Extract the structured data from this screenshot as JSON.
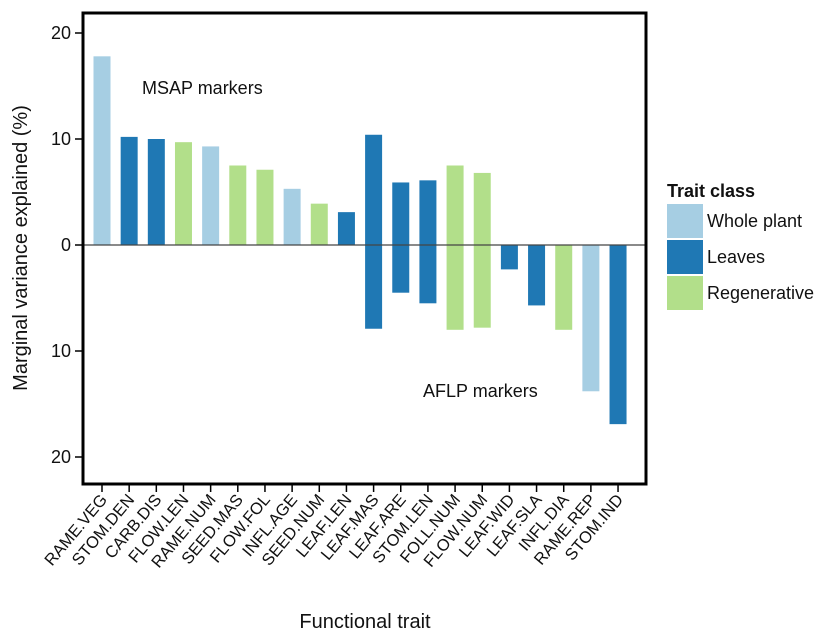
{
  "chart_data": {
    "type": "bar",
    "xlabel": "Functional trait",
    "ylabel": "Marginal variance explained  (%)",
    "ylim": [
      -20,
      20
    ],
    "y_ticks": [
      20,
      10,
      0,
      10,
      20
    ],
    "y_tick_values": [
      20,
      10,
      0,
      -10,
      -20
    ],
    "grid": false,
    "legend_position": "right",
    "legend_title": "Trait class",
    "classes": [
      {
        "name": "Whole plant",
        "color": "#a6cee3"
      },
      {
        "name": "Leaves",
        "color": "#1f78b4"
      },
      {
        "name": "Regenerative",
        "color": "#b2df8a"
      }
    ],
    "annotations": {
      "upper": "MSAP markers",
      "lower": "AFLP markers"
    },
    "categories": [
      "RAME.VEG",
      "STOM.DEN",
      "CARB.DIS",
      "FLOW.LEN",
      "RAME.NUM",
      "SEED.MAS",
      "FLOW.FOL",
      "INFL.AGE",
      "SEED.NUM",
      "LEAF.LEN",
      "LEAF.MAS",
      "LEAF.ARE",
      "STOM.LEN",
      "FOLL.NUM",
      "FLOW.NUM",
      "LEAF.WID",
      "LEAF.SLA",
      "INFL.DIA",
      "RAME.REP",
      "STOM.IND"
    ],
    "category_class": [
      "Whole plant",
      "Leaves",
      "Leaves",
      "Regenerative",
      "Whole plant",
      "Regenerative",
      "Regenerative",
      "Whole plant",
      "Regenerative",
      "Leaves",
      "Leaves",
      "Leaves",
      "Leaves",
      "Regenerative",
      "Regenerative",
      "Leaves",
      "Leaves",
      "Regenerative",
      "Whole plant",
      "Leaves"
    ],
    "series": [
      {
        "name": "MSAP markers",
        "values": [
          17.8,
          10.2,
          10.0,
          9.7,
          9.3,
          7.5,
          7.1,
          5.3,
          3.9,
          3.1,
          10.4,
          5.9,
          6.1,
          7.5,
          6.8,
          0,
          0,
          0,
          0,
          0
        ]
      },
      {
        "name": "AFLP markers",
        "values": [
          0,
          0,
          0,
          0,
          0,
          0,
          0,
          0,
          0,
          0,
          7.9,
          4.5,
          5.5,
          8.0,
          7.8,
          2.3,
          5.7,
          8.0,
          13.8,
          16.9
        ]
      }
    ]
  }
}
